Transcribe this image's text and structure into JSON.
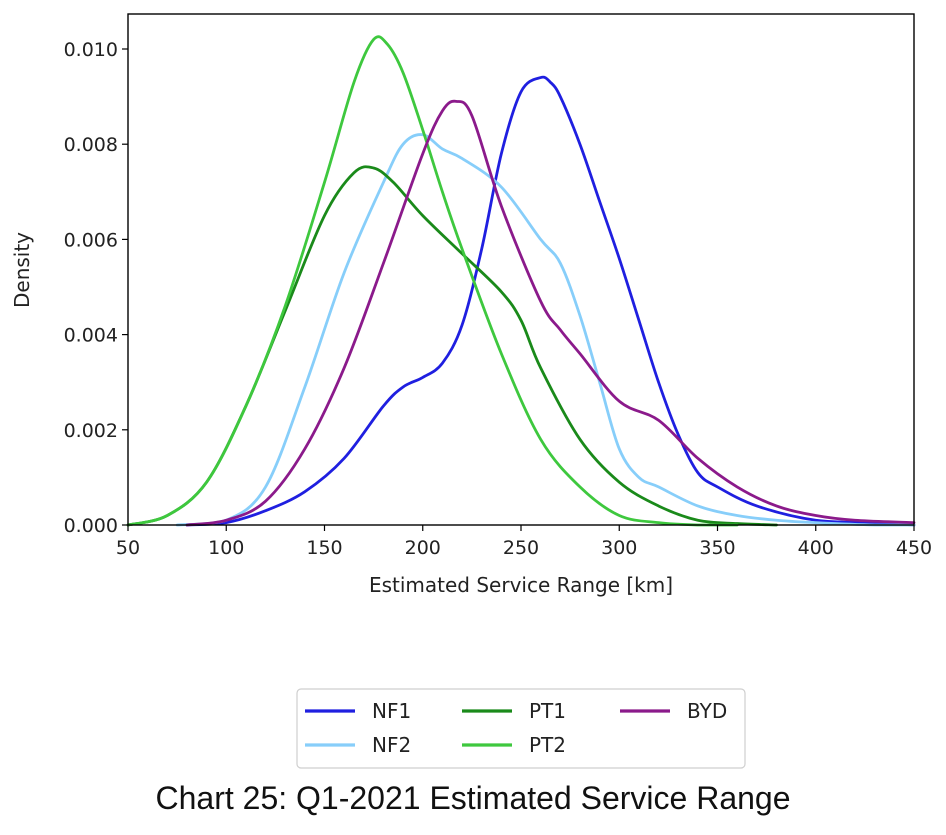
{
  "caption": "Chart 25: Q1-2021 Estimated Service Range",
  "chart_data": {
    "type": "line",
    "title": "",
    "xlabel": "Estimated Service Range [km]",
    "ylabel": "Density",
    "xlim": [
      50,
      450
    ],
    "ylim": [
      0,
      0.0107
    ],
    "x_ticks": [
      50,
      100,
      150,
      200,
      250,
      300,
      350,
      400,
      450
    ],
    "x_tick_labels": [
      "50",
      "100",
      "150",
      "200",
      "250",
      "300",
      "350",
      "400",
      "450"
    ],
    "y_ticks": [
      0,
      0.002,
      0.004,
      0.006,
      0.008,
      0.01
    ],
    "y_tick_labels": [
      "0.000",
      "0.002",
      "0.004",
      "0.006",
      "0.008",
      "0.010"
    ],
    "grid": false,
    "legend_position": "bottom-center, below chart",
    "series": [
      {
        "name": "NF1",
        "color": "#1f1fe0",
        "x": [
          80,
          100,
          120,
          140,
          160,
          180,
          190,
          200,
          210,
          220,
          230,
          240,
          250,
          260,
          265,
          270,
          280,
          290,
          300,
          310,
          320,
          330,
          340,
          350,
          370,
          400,
          430,
          450
        ],
        "y": [
          0.0,
          5e-05,
          0.0003,
          0.0007,
          0.0014,
          0.0025,
          0.0029,
          0.0031,
          0.0034,
          0.0042,
          0.0058,
          0.0078,
          0.0091,
          0.0094,
          0.0093,
          0.009,
          0.008,
          0.0068,
          0.0056,
          0.0043,
          0.003,
          0.0019,
          0.0011,
          0.0008,
          0.0004,
          0.0001,
          5e-05,
          0.0
        ]
      },
      {
        "name": "NF2",
        "color": "#87cefa",
        "x": [
          75,
          100,
          120,
          140,
          160,
          180,
          190,
          200,
          210,
          220,
          240,
          260,
          270,
          280,
          290,
          300,
          310,
          320,
          340,
          360,
          380,
          400,
          430,
          450
        ],
        "y": [
          0.0,
          0.0001,
          0.0008,
          0.0029,
          0.0053,
          0.0072,
          0.008,
          0.0082,
          0.0079,
          0.0077,
          0.0071,
          0.006,
          0.0055,
          0.0044,
          0.003,
          0.0016,
          0.001,
          0.0008,
          0.0004,
          0.0002,
          0.0001,
          5e-05,
          0.0,
          0.0
        ]
      },
      {
        "name": "PT1",
        "color": "#1a8a1a",
        "x": [
          50,
          70,
          90,
          110,
          130,
          150,
          165,
          175,
          185,
          200,
          220,
          240,
          250,
          260,
          280,
          300,
          320,
          340,
          360,
          380
        ],
        "y": [
          0.0,
          0.0002,
          0.0009,
          0.0025,
          0.0045,
          0.0065,
          0.0074,
          0.0075,
          0.0072,
          0.0065,
          0.0057,
          0.0049,
          0.0043,
          0.0033,
          0.0018,
          0.0009,
          0.0004,
          0.0001,
          3e-05,
          0.0
        ]
      },
      {
        "name": "PT2",
        "color": "#3ec83e",
        "x": [
          50,
          70,
          90,
          110,
          130,
          150,
          165,
          175,
          182,
          190,
          200,
          210,
          220,
          240,
          260,
          280,
          300,
          320,
          340,
          360
        ],
        "y": [
          0.0,
          0.0002,
          0.0009,
          0.0025,
          0.0046,
          0.0072,
          0.0093,
          0.0102,
          0.0101,
          0.0095,
          0.0083,
          0.007,
          0.0058,
          0.0036,
          0.0018,
          0.0008,
          0.0002,
          5e-05,
          0.0,
          0.0
        ]
      },
      {
        "name": "BYD",
        "color": "#8b1a8b",
        "x": [
          80,
          100,
          120,
          140,
          160,
          180,
          200,
          210,
          217,
          225,
          240,
          260,
          270,
          280,
          300,
          320,
          340,
          360,
          380,
          400,
          420,
          450
        ],
        "y": [
          0.0,
          0.0001,
          0.0005,
          0.0016,
          0.0033,
          0.0055,
          0.0078,
          0.0087,
          0.0089,
          0.0086,
          0.0067,
          0.0047,
          0.0041,
          0.0036,
          0.0026,
          0.0022,
          0.0014,
          0.0008,
          0.0004,
          0.0002,
          0.0001,
          5e-05
        ]
      }
    ]
  },
  "legend": {
    "entries": [
      {
        "name": "NF1",
        "color": "#1f1fe0"
      },
      {
        "name": "NF2",
        "color": "#87cefa"
      },
      {
        "name": "PT1",
        "color": "#1a8a1a"
      },
      {
        "name": "PT2",
        "color": "#3ec83e"
      },
      {
        "name": "BYD",
        "color": "#8b1a8b"
      }
    ]
  }
}
